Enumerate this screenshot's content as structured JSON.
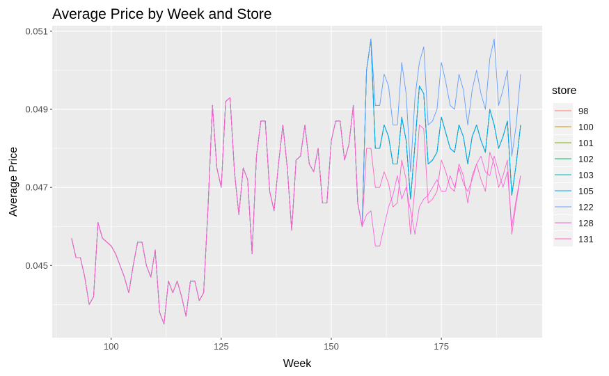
{
  "chart_data": {
    "type": "line",
    "title": "Average Price by Week and Store",
    "xlabel": "Week",
    "ylabel": "Average Price",
    "xlim": [
      86.6,
      197.9
    ],
    "ylim": [
      0.04315,
      0.05114
    ],
    "xticks": [
      100,
      125,
      150,
      175
    ],
    "xtick_labels": [
      "100",
      "125",
      "150",
      "175"
    ],
    "yticks": [
      0.045,
      0.047,
      0.049,
      0.051
    ],
    "ytick_labels": [
      "0.045",
      "0.047",
      "0.049",
      "0.051"
    ],
    "grid": true,
    "legend_title": "store",
    "legend_position": "right",
    "x": [
      91,
      92,
      93,
      94,
      95,
      96,
      97,
      98,
      99,
      100,
      101,
      102,
      103,
      104,
      105,
      106,
      107,
      108,
      109,
      110,
      111,
      112,
      113,
      114,
      115,
      116,
      117,
      118,
      119,
      120,
      121,
      122,
      123,
      124,
      125,
      126,
      127,
      128,
      129,
      130,
      131,
      132,
      133,
      134,
      135,
      136,
      137,
      138,
      139,
      140,
      141,
      142,
      143,
      144,
      145,
      146,
      147,
      148,
      149,
      150,
      151,
      152,
      153,
      154,
      155,
      156,
      157,
      158,
      159,
      160,
      161,
      162,
      163,
      164,
      165,
      166,
      167,
      168,
      169,
      170,
      171,
      172,
      173,
      174,
      175,
      176,
      177,
      178,
      179,
      180,
      181,
      182,
      183,
      184,
      185,
      186,
      187,
      188,
      189,
      190,
      191,
      192,
      193
    ],
    "series": [
      {
        "name": "98",
        "color": "#F8766D",
        "values": [
          0.0457,
          0.0452,
          0.0452,
          0.0447,
          0.044,
          0.0442,
          0.0461,
          0.0457,
          0.0456,
          0.0455,
          0.0453,
          0.045,
          0.0447,
          0.0443,
          0.045,
          0.0456,
          0.0456,
          0.045,
          0.0447,
          0.0454,
          0.0438,
          0.0435,
          0.0446,
          0.0443,
          0.0446,
          0.0442,
          0.0437,
          0.0446,
          0.0446,
          0.0441,
          0.0443,
          0.0465,
          0.0491,
          0.0475,
          0.047,
          0.0492,
          0.0493,
          0.0474,
          0.0463,
          0.0475,
          0.0472,
          0.0453,
          0.0478,
          0.0487,
          0.0487,
          0.0469,
          0.0464,
          0.0476,
          0.0486,
          0.0475,
          0.0459,
          0.0477,
          0.0478,
          0.0486,
          0.0476,
          0.0474,
          0.048,
          0.0466,
          0.0466,
          0.0482,
          0.0487,
          0.0487,
          0.0477,
          0.0481,
          0.0491,
          0.0466,
          0.046,
          0.05,
          0.0508,
          0.048,
          0.048,
          0.0486,
          0.0483,
          0.0476,
          0.0476,
          0.0488,
          0.0482,
          0.0467,
          0.0481,
          0.0496,
          0.0494,
          0.0476,
          0.0477,
          0.0479,
          0.0488,
          0.0484,
          0.048,
          0.0479,
          0.0486,
          0.0483,
          0.0476,
          0.0483,
          0.0486,
          0.0482,
          0.0479,
          0.049,
          0.0486,
          0.048,
          0.0483,
          0.0487,
          0.0468,
          0.0476,
          0.0486
        ]
      },
      {
        "name": "100",
        "color": "#CD9600",
        "values": [
          0.0457,
          0.0452,
          0.0452,
          0.0447,
          0.044,
          0.0442,
          0.0461,
          0.0457,
          0.0456,
          0.0455,
          0.0453,
          0.045,
          0.0447,
          0.0443,
          0.045,
          0.0456,
          0.0456,
          0.045,
          0.0447,
          0.0454,
          0.0438,
          0.0435,
          0.0446,
          0.0443,
          0.0446,
          0.0442,
          0.0437,
          0.0446,
          0.0446,
          0.0441,
          0.0443,
          0.0465,
          0.0491,
          0.0475,
          0.047,
          0.0492,
          0.0493,
          0.0474,
          0.0463,
          0.0475,
          0.0472,
          0.0453,
          0.0478,
          0.0487,
          0.0487,
          0.0469,
          0.0464,
          0.0476,
          0.0486,
          0.0475,
          0.0459,
          0.0477,
          0.0478,
          0.0486,
          0.0476,
          0.0474,
          0.048,
          0.0466,
          0.0466,
          0.0482,
          0.0487,
          0.0487,
          0.0477,
          0.0481,
          0.0491,
          0.0466,
          0.046,
          0.05,
          0.0508,
          0.048,
          0.048,
          0.0486,
          0.0483,
          0.0476,
          0.0476,
          0.0488,
          0.0482,
          0.0467,
          0.0481,
          0.0496,
          0.0494,
          0.0476,
          0.0477,
          0.0479,
          0.0488,
          0.0484,
          0.048,
          0.0479,
          0.0486,
          0.0483,
          0.0476,
          0.0483,
          0.0486,
          0.0482,
          0.0479,
          0.049,
          0.0486,
          0.048,
          0.0483,
          0.0487,
          0.0468,
          0.0476,
          0.0486
        ]
      },
      {
        "name": "101",
        "color": "#7CAE00",
        "values": [
          0.0457,
          0.0452,
          0.0452,
          0.0447,
          0.044,
          0.0442,
          0.0461,
          0.0457,
          0.0456,
          0.0455,
          0.0453,
          0.045,
          0.0447,
          0.0443,
          0.045,
          0.0456,
          0.0456,
          0.045,
          0.0447,
          0.0454,
          0.0438,
          0.0435,
          0.0446,
          0.0443,
          0.0446,
          0.0442,
          0.0437,
          0.0446,
          0.0446,
          0.0441,
          0.0443,
          0.0465,
          0.0491,
          0.0475,
          0.047,
          0.0492,
          0.0493,
          0.0474,
          0.0463,
          0.0475,
          0.0472,
          0.0453,
          0.0478,
          0.0487,
          0.0487,
          0.0469,
          0.0464,
          0.0476,
          0.0486,
          0.0475,
          0.0459,
          0.0477,
          0.0478,
          0.0486,
          0.0476,
          0.0474,
          0.048,
          0.0466,
          0.0466,
          0.0482,
          0.0487,
          0.0487,
          0.0477,
          0.0481,
          0.0491,
          0.0466,
          0.046,
          0.05,
          0.0508,
          0.048,
          0.048,
          0.0486,
          0.0483,
          0.0476,
          0.0476,
          0.0488,
          0.0482,
          0.0467,
          0.0481,
          0.0496,
          0.0494,
          0.0476,
          0.0477,
          0.0479,
          0.0488,
          0.0484,
          0.048,
          0.0479,
          0.0486,
          0.0483,
          0.0476,
          0.0483,
          0.0486,
          0.0482,
          0.0479,
          0.049,
          0.0486,
          0.048,
          0.0483,
          0.0487,
          0.0468,
          0.0476,
          0.0486
        ]
      },
      {
        "name": "102",
        "color": "#00BE67",
        "values": [
          0.0457,
          0.0452,
          0.0452,
          0.0447,
          0.044,
          0.0442,
          0.0461,
          0.0457,
          0.0456,
          0.0455,
          0.0453,
          0.045,
          0.0447,
          0.0443,
          0.045,
          0.0456,
          0.0456,
          0.045,
          0.0447,
          0.0454,
          0.0438,
          0.0435,
          0.0446,
          0.0443,
          0.0446,
          0.0442,
          0.0437,
          0.0446,
          0.0446,
          0.0441,
          0.0443,
          0.0465,
          0.0491,
          0.0475,
          0.047,
          0.0492,
          0.0493,
          0.0474,
          0.0463,
          0.0475,
          0.0472,
          0.0453,
          0.0478,
          0.0487,
          0.0487,
          0.0469,
          0.0464,
          0.0476,
          0.0486,
          0.0475,
          0.0459,
          0.0477,
          0.0478,
          0.0486,
          0.0476,
          0.0474,
          0.048,
          0.0466,
          0.0466,
          0.0482,
          0.0487,
          0.0487,
          0.0477,
          0.0481,
          0.0491,
          0.0466,
          0.046,
          0.05,
          0.0508,
          0.048,
          0.048,
          0.0486,
          0.0483,
          0.0476,
          0.0476,
          0.0488,
          0.0482,
          0.0467,
          0.0481,
          0.0496,
          0.0494,
          0.0476,
          0.0477,
          0.0479,
          0.0488,
          0.0484,
          0.048,
          0.0479,
          0.0486,
          0.0483,
          0.0476,
          0.0483,
          0.0486,
          0.0482,
          0.0479,
          0.049,
          0.0486,
          0.048,
          0.0483,
          0.0487,
          0.0468,
          0.0476,
          0.0486
        ]
      },
      {
        "name": "103",
        "color": "#00BFC4",
        "values": [
          0.0457,
          0.0452,
          0.0452,
          0.0447,
          0.044,
          0.0442,
          0.0461,
          0.0457,
          0.0456,
          0.0455,
          0.0453,
          0.045,
          0.0447,
          0.0443,
          0.045,
          0.0456,
          0.0456,
          0.045,
          0.0447,
          0.0454,
          0.0438,
          0.0435,
          0.0446,
          0.0443,
          0.0446,
          0.0442,
          0.0437,
          0.0446,
          0.0446,
          0.0441,
          0.0443,
          0.0465,
          0.0491,
          0.0475,
          0.047,
          0.0492,
          0.0493,
          0.0474,
          0.0463,
          0.0475,
          0.0472,
          0.0453,
          0.0478,
          0.0487,
          0.0487,
          0.0469,
          0.0464,
          0.0476,
          0.0486,
          0.0475,
          0.0459,
          0.0477,
          0.0478,
          0.0486,
          0.0476,
          0.0474,
          0.048,
          0.0466,
          0.0466,
          0.0482,
          0.0487,
          0.0487,
          0.0477,
          0.0481,
          0.0491,
          0.0466,
          0.046,
          0.05,
          0.0508,
          0.048,
          0.048,
          0.0486,
          0.0483,
          0.0476,
          0.0476,
          0.0488,
          0.0482,
          0.0467,
          0.0481,
          0.0496,
          0.0494,
          0.0476,
          0.0477,
          0.0479,
          0.0488,
          0.0484,
          0.048,
          0.0479,
          0.0486,
          0.0483,
          0.0476,
          0.0483,
          0.0486,
          0.0482,
          0.0479,
          0.049,
          0.0486,
          0.048,
          0.0483,
          0.0487,
          0.0468,
          0.0476,
          0.0486
        ]
      },
      {
        "name": "105",
        "color": "#00A9FF",
        "values": [
          0.0457,
          0.0452,
          0.0452,
          0.0447,
          0.044,
          0.0442,
          0.0461,
          0.0457,
          0.0456,
          0.0455,
          0.0453,
          0.045,
          0.0447,
          0.0443,
          0.045,
          0.0456,
          0.0456,
          0.045,
          0.0447,
          0.0454,
          0.0438,
          0.0435,
          0.0446,
          0.0443,
          0.0446,
          0.0442,
          0.0437,
          0.0446,
          0.0446,
          0.0441,
          0.0443,
          0.0465,
          0.0491,
          0.0475,
          0.047,
          0.0492,
          0.0493,
          0.0474,
          0.0463,
          0.0475,
          0.0472,
          0.0453,
          0.0478,
          0.0487,
          0.0487,
          0.0469,
          0.0464,
          0.0476,
          0.0486,
          0.0475,
          0.0459,
          0.0477,
          0.0478,
          0.0486,
          0.0476,
          0.0474,
          0.048,
          0.0466,
          0.0466,
          0.0482,
          0.0487,
          0.0487,
          0.0477,
          0.0481,
          0.0491,
          0.0466,
          0.046,
          0.05,
          0.0508,
          0.048,
          0.048,
          0.0486,
          0.0483,
          0.0476,
          0.0476,
          0.0488,
          0.0482,
          0.0467,
          0.0481,
          0.0496,
          0.0494,
          0.0476,
          0.0477,
          0.0479,
          0.0488,
          0.0484,
          0.048,
          0.0479,
          0.0486,
          0.0483,
          0.0476,
          0.0483,
          0.0486,
          0.0482,
          0.0479,
          0.049,
          0.0486,
          0.048,
          0.0483,
          0.0487,
          0.0468,
          0.0476,
          0.0486
        ]
      },
      {
        "name": "122",
        "color": "#619CFF",
        "values": [
          0.0457,
          0.0452,
          0.0452,
          0.0447,
          0.044,
          0.0442,
          0.0461,
          0.0457,
          0.0456,
          0.0455,
          0.0453,
          0.045,
          0.0447,
          0.0443,
          0.045,
          0.0456,
          0.0456,
          0.045,
          0.0447,
          0.0454,
          0.0438,
          0.0435,
          0.0446,
          0.0443,
          0.0446,
          0.0442,
          0.0437,
          0.0446,
          0.0446,
          0.0441,
          0.0443,
          0.0465,
          0.0491,
          0.0475,
          0.047,
          0.0492,
          0.0493,
          0.0474,
          0.0463,
          0.0475,
          0.0472,
          0.0453,
          0.0478,
          0.0487,
          0.0487,
          0.0469,
          0.0464,
          0.0476,
          0.0486,
          0.0475,
          0.0459,
          0.0477,
          0.0478,
          0.0486,
          0.0476,
          0.0474,
          0.048,
          0.0466,
          0.0466,
          0.0482,
          0.0487,
          0.0487,
          0.0477,
          0.0481,
          0.0491,
          0.0466,
          0.046,
          0.05,
          0.0508,
          0.0491,
          0.0491,
          0.0499,
          0.0496,
          0.0486,
          0.0486,
          0.0502,
          0.0494,
          0.0474,
          0.0493,
          0.0502,
          0.0506,
          0.0486,
          0.0487,
          0.049,
          0.0502,
          0.0497,
          0.0491,
          0.049,
          0.0499,
          0.0495,
          0.0486,
          0.0495,
          0.05,
          0.0494,
          0.049,
          0.0503,
          0.0508,
          0.0491,
          0.0495,
          0.05,
          0.0478,
          0.0486,
          0.0499
        ]
      },
      {
        "name": "128",
        "color": "#F564E3",
        "values": [
          0.0457,
          0.0452,
          0.0452,
          0.0447,
          0.044,
          0.0442,
          0.0461,
          0.0457,
          0.0456,
          0.0455,
          0.0453,
          0.045,
          0.0447,
          0.0443,
          0.045,
          0.0456,
          0.0456,
          0.045,
          0.0447,
          0.0454,
          0.0438,
          0.0435,
          0.0446,
          0.0443,
          0.0446,
          0.0442,
          0.0437,
          0.0446,
          0.0446,
          0.0441,
          0.0443,
          0.0465,
          0.0491,
          0.0475,
          0.047,
          0.0492,
          0.0493,
          0.0474,
          0.0463,
          0.0475,
          0.0472,
          0.0453,
          0.0478,
          0.0487,
          0.0487,
          0.0469,
          0.0464,
          0.0476,
          0.0486,
          0.0475,
          0.0459,
          0.0477,
          0.0478,
          0.0486,
          0.0476,
          0.0474,
          0.048,
          0.0466,
          0.0466,
          0.0482,
          0.0487,
          0.0487,
          0.0477,
          0.0481,
          0.0491,
          0.0466,
          0.046,
          0.0463,
          0.0464,
          0.0455,
          0.0455,
          0.046,
          0.0465,
          0.0468,
          0.0473,
          0.0467,
          0.047,
          0.0464,
          0.0458,
          0.0465,
          0.0467,
          0.0468,
          0.047,
          0.0472,
          0.0469,
          0.0469,
          0.0473,
          0.047,
          0.0475,
          0.0471,
          0.0469,
          0.0472,
          0.0476,
          0.0478,
          0.0474,
          0.0473,
          0.0478,
          0.0474,
          0.047,
          0.0474,
          0.046,
          0.0467,
          0.0473
        ]
      },
      {
        "name": "131",
        "color": "#FF61C3",
        "values": [
          0.0457,
          0.0452,
          0.0452,
          0.0447,
          0.044,
          0.0442,
          0.0461,
          0.0457,
          0.0456,
          0.0455,
          0.0453,
          0.045,
          0.0447,
          0.0443,
          0.045,
          0.0456,
          0.0456,
          0.045,
          0.0447,
          0.0454,
          0.0438,
          0.0435,
          0.0446,
          0.0443,
          0.0446,
          0.0442,
          0.0437,
          0.0446,
          0.0446,
          0.0441,
          0.0443,
          0.0465,
          0.0491,
          0.0475,
          0.047,
          0.0492,
          0.0493,
          0.0474,
          0.0463,
          0.0475,
          0.0472,
          0.0453,
          0.0478,
          0.0487,
          0.0487,
          0.0469,
          0.0464,
          0.0476,
          0.0486,
          0.0475,
          0.0459,
          0.0477,
          0.0478,
          0.0486,
          0.0476,
          0.0474,
          0.048,
          0.0466,
          0.0466,
          0.0482,
          0.0487,
          0.0487,
          0.0477,
          0.0481,
          0.0491,
          0.0466,
          0.046,
          0.048,
          0.048,
          0.047,
          0.047,
          0.0474,
          0.0471,
          0.0465,
          0.0466,
          0.0477,
          0.0472,
          0.0458,
          0.047,
          0.0486,
          0.0485,
          0.0466,
          0.0467,
          0.0469,
          0.0477,
          0.0474,
          0.047,
          0.0469,
          0.0476,
          0.0473,
          0.0466,
          0.0473,
          0.0476,
          0.0472,
          0.0469,
          0.0479,
          0.0476,
          0.047,
          0.0473,
          0.0477,
          0.0458,
          0.0466,
          0.0473
        ]
      }
    ]
  }
}
